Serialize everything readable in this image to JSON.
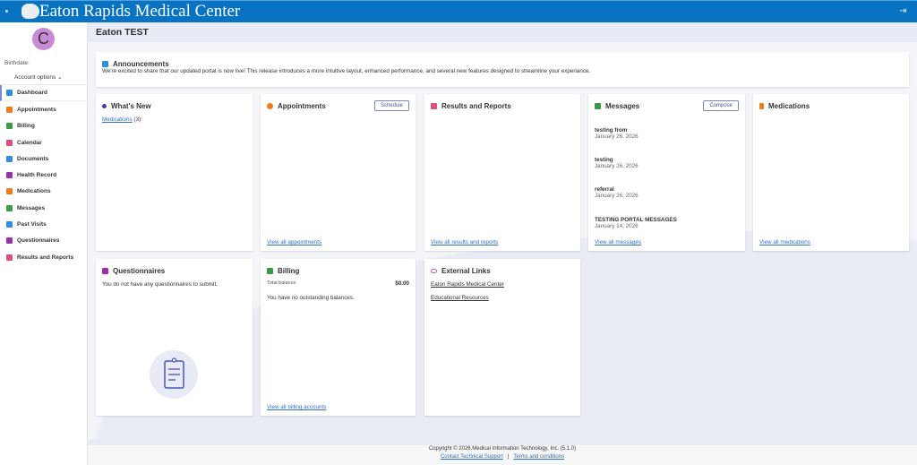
{
  "header": {
    "title": "Eaton Rapids Medical Center",
    "logout_icon": "logout-icon",
    "color": "#0873c3"
  },
  "sidebar": {
    "avatar_letter": "C",
    "birthdate_label": "Birthdate:",
    "account_options": "Account options",
    "items": [
      {
        "label": "Dashboard",
        "icon": "home-icon",
        "color": "#2f8ee0",
        "active": true
      },
      {
        "label": "Appointments",
        "icon": "clock-icon",
        "color": "#f07c1e"
      },
      {
        "label": "Billing",
        "icon": "billing-icon",
        "color": "#3a9a45"
      },
      {
        "label": "Calendar",
        "icon": "calendar-icon",
        "color": "#e0507a"
      },
      {
        "label": "Documents",
        "icon": "document-icon",
        "color": "#2f8ee0"
      },
      {
        "label": "Health Record",
        "icon": "folder-icon",
        "color": "#9b2fae"
      },
      {
        "label": "Medications",
        "icon": "pill-bottle-icon",
        "color": "#f07c1e"
      },
      {
        "label": "Messages",
        "icon": "envelope-icon",
        "color": "#3a9a45"
      },
      {
        "label": "Past Visits",
        "icon": "history-icon",
        "color": "#2f8ee0"
      },
      {
        "label": "Questionnaires",
        "icon": "clipboard-icon",
        "color": "#9b2fae"
      },
      {
        "label": "Results and Reports",
        "icon": "results-icon",
        "color": "#e0507a"
      }
    ]
  },
  "page_title": "Eaton TEST",
  "announcements": {
    "title": "Announcements",
    "text": "We're excited to share that our updated portal is now live! This release introduces a more intuitive layout, enhanced performance, and several new features designed to streamline your experiance."
  },
  "whats_new": {
    "title": "What's New",
    "link": "Medications",
    "count": "(3)"
  },
  "appointments": {
    "title": "Appointments",
    "button": "Schedule",
    "view_all": "View all appointments"
  },
  "results": {
    "title": "Results and Reports",
    "view_all": "View all results and reports"
  },
  "messages": {
    "title": "Messages",
    "button": "Compose",
    "view_all": "View all messages",
    "items": [
      {
        "subject": "testing from",
        "date": "January 26, 2026"
      },
      {
        "subject": "testing",
        "date": "January 26, 2026"
      },
      {
        "subject": "referral",
        "date": "January 26, 2026"
      },
      {
        "subject": "TESTING PORTAL MESSAGES",
        "date": "January 14, 2026"
      }
    ]
  },
  "medications": {
    "title": "Medications",
    "view_all": "View all medications"
  },
  "questionnaires": {
    "title": "Questionnaires",
    "text": "You do not have any questionnaires to submit."
  },
  "billing": {
    "title": "Billing",
    "total_label": "Total balance",
    "total_value": "$0.00",
    "text": "You have no outstanding balances.",
    "view_all": "View all billing accounts"
  },
  "external_links": {
    "title": "External Links",
    "links": [
      "Eaton Rapids Medical Center",
      "Educational Resources"
    ]
  },
  "footer": {
    "copyright": "Copyright © 2026  Medical Information Technology, Inc.  (5.1.0)",
    "support": "Contact Technical Support",
    "separator": "|",
    "terms": "Terms and conditions"
  }
}
